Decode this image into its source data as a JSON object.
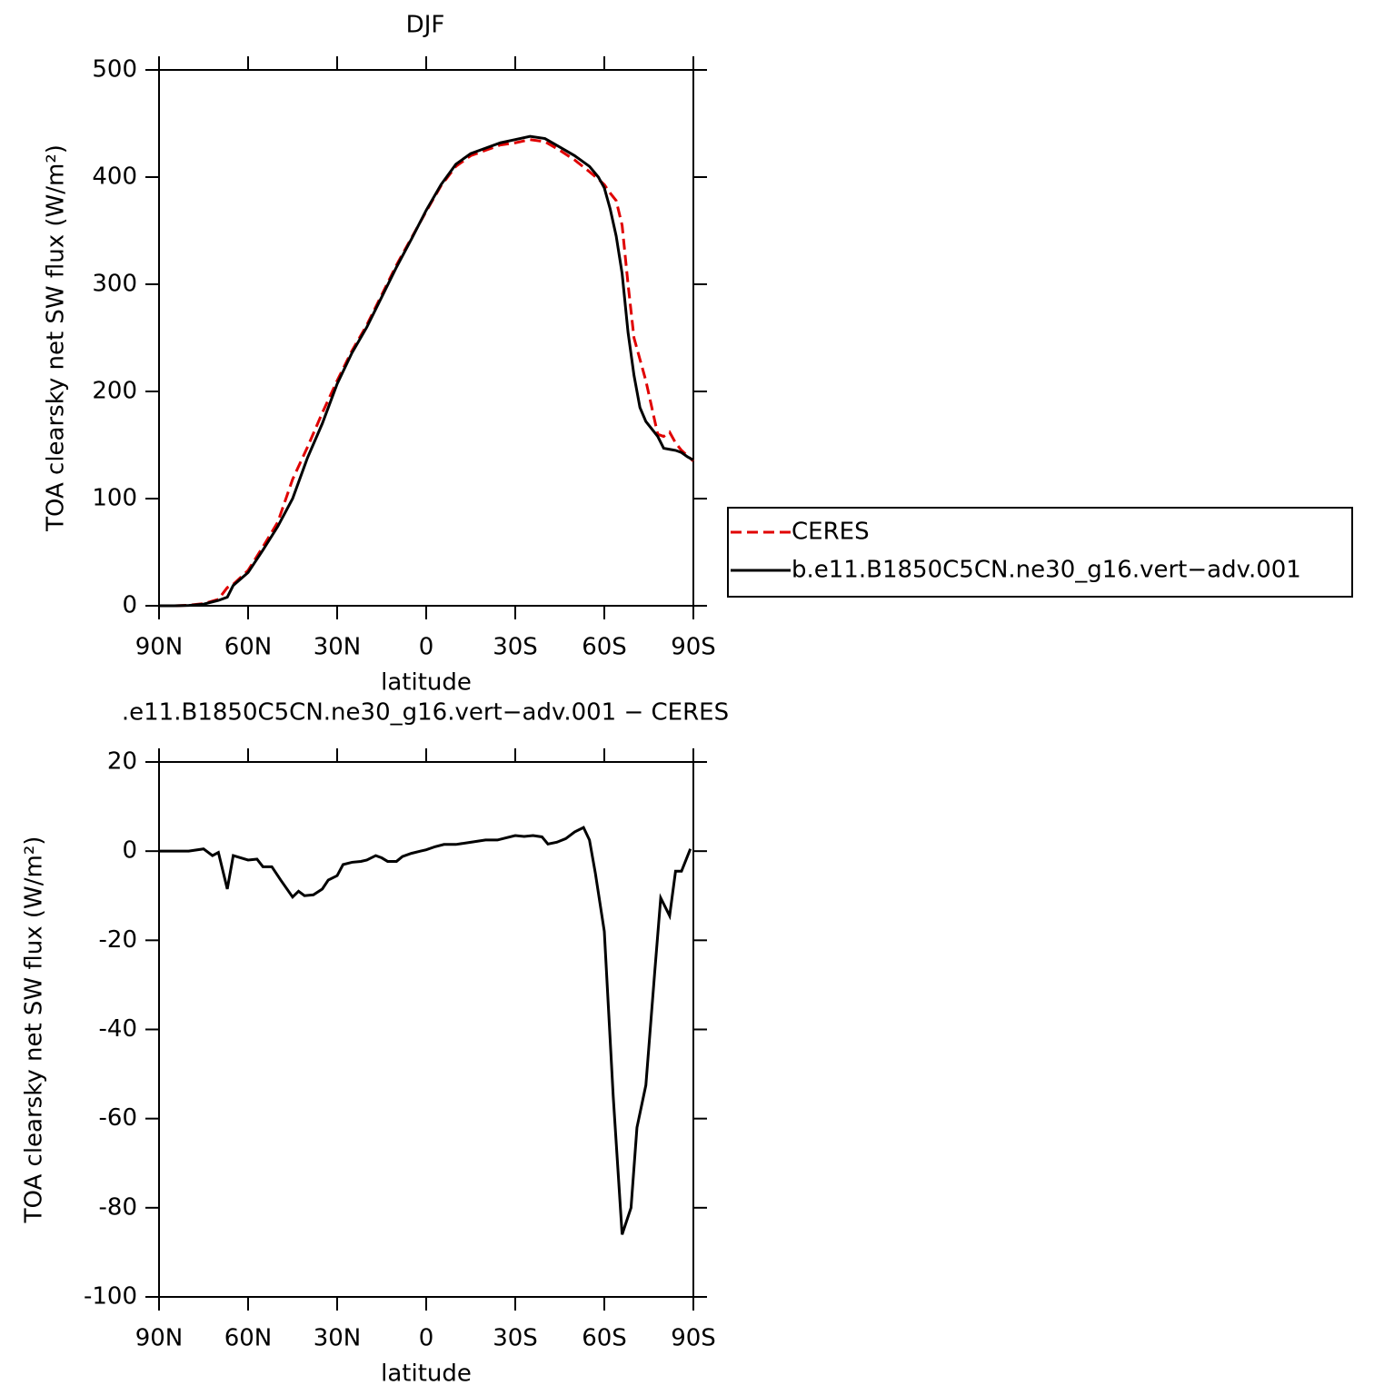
{
  "chart_data": [
    {
      "type": "line",
      "title": "DJF",
      "xlabel": "latitude",
      "ylabel": "TOA clearsky net SW flux (W/m²)",
      "x": [
        90,
        85,
        80,
        75,
        70,
        67,
        65,
        60,
        55,
        50,
        45,
        40,
        35,
        30,
        25,
        20,
        15,
        10,
        5,
        0,
        -5,
        -10,
        -15,
        -20,
        -25,
        -30,
        -35,
        -40,
        -45,
        -50,
        -55,
        -58,
        -60,
        -62,
        -64,
        -66,
        -68,
        -70,
        -72,
        -74,
        -76,
        -78,
        -80,
        -82,
        -84,
        -86,
        -88,
        -90
      ],
      "series": [
        {
          "name": "CERES",
          "color": "#e00000",
          "linestyle": "dashed",
          "values": [
            0,
            0,
            0.5,
            2,
            6,
            17,
            20,
            33,
            55,
            78,
            118,
            148,
            180,
            210,
            238,
            262,
            290,
            318,
            343,
            368,
            392,
            410,
            420,
            425,
            430,
            432,
            435,
            433,
            425,
            416,
            405,
            398,
            393,
            385,
            378,
            355,
            300,
            250,
            230,
            210,
            185,
            160,
            158,
            162,
            152,
            145,
            140,
            135
          ]
        },
        {
          "name": "b.e11.B1850C5CN.ne30_g16.vert−adv.001",
          "color": "#000000",
          "linestyle": "solid",
          "values": [
            0,
            0,
            0.3,
            1.5,
            5,
            8,
            19,
            31,
            52,
            74,
            100,
            138,
            170,
            207,
            236,
            260,
            288,
            316,
            342,
            369,
            393,
            412,
            422,
            427,
            432,
            435,
            438,
            436,
            428,
            420,
            410,
            400,
            390,
            370,
            345,
            310,
            255,
            215,
            185,
            172,
            165,
            158,
            147,
            146,
            145,
            143,
            139,
            136
          ]
        }
      ],
      "xlim": [
        90,
        -90
      ],
      "xticks": [
        {
          "value": 90,
          "label": "90N"
        },
        {
          "value": 60,
          "label": "60N"
        },
        {
          "value": 30,
          "label": "30N"
        },
        0,
        {
          "value": -30,
          "label": "30S"
        },
        {
          "value": -60,
          "label": "60S"
        },
        {
          "value": -90,
          "label": "90S"
        }
      ],
      "ylim": [
        0,
        500
      ],
      "yticks": [
        0,
        100,
        200,
        300,
        400,
        500
      ],
      "legend": "outside right"
    },
    {
      "type": "line",
      "title": ".e11.B1850C5CN.ne30_g16.vert−adv.001 − CERES",
      "xlabel": "latitude",
      "ylabel": "TOA clearsky net SW flux (W/m²)",
      "x": [
        90,
        85,
        80,
        75,
        72,
        70,
        67,
        65,
        60,
        57,
        55,
        52,
        49,
        45,
        43,
        41,
        38,
        35,
        33,
        30,
        28,
        25,
        22,
        20,
        17,
        15,
        13,
        10,
        8,
        5,
        2,
        0,
        -3,
        -6,
        -10,
        -15,
        -20,
        -24,
        -27,
        -30,
        -33,
        -36,
        -39,
        -41,
        -44,
        -47,
        -50,
        -53,
        -55,
        -57,
        -60,
        -63,
        -66,
        -69,
        -71,
        -74,
        -77,
        -79,
        -82,
        -84,
        -86,
        -89
      ],
      "series": [
        {
          "name": null,
          "color": "#000000",
          "linestyle": "solid",
          "values": [
            0,
            0,
            0,
            0.5,
            -1,
            -0.3,
            -8.5,
            -1,
            -2,
            -1.8,
            -3.5,
            -3.5,
            -6.5,
            -10.3,
            -9,
            -10,
            -9.8,
            -8.5,
            -6.5,
            -5.5,
            -3,
            -2.5,
            -2.3,
            -2,
            -1,
            -1.5,
            -2.3,
            -2.3,
            -1.2,
            -0.5,
            0,
            0.3,
            1,
            1.5,
            1.5,
            2,
            2.5,
            2.5,
            3,
            3.5,
            3.3,
            3.5,
            3.2,
            1.6,
            2,
            2.8,
            4.3,
            5.3,
            2.5,
            -5,
            -18,
            -55,
            -86,
            -80,
            -62,
            -52.5,
            -27,
            -10.5,
            -14.5,
            -4.5,
            -4.5,
            0.5
          ]
        }
      ],
      "xlim": [
        90,
        -90
      ],
      "xticks": [
        {
          "value": 90,
          "label": "90N"
        },
        {
          "value": 60,
          "label": "60N"
        },
        {
          "value": 30,
          "label": "30N"
        },
        0,
        {
          "value": -30,
          "label": "30S"
        },
        {
          "value": -60,
          "label": "60S"
        },
        {
          "value": -90,
          "label": "90S"
        }
      ],
      "ylim": [
        -100,
        20
      ],
      "yticks": [
        -100,
        -80,
        -60,
        -40,
        -20,
        0,
        20
      ]
    }
  ]
}
